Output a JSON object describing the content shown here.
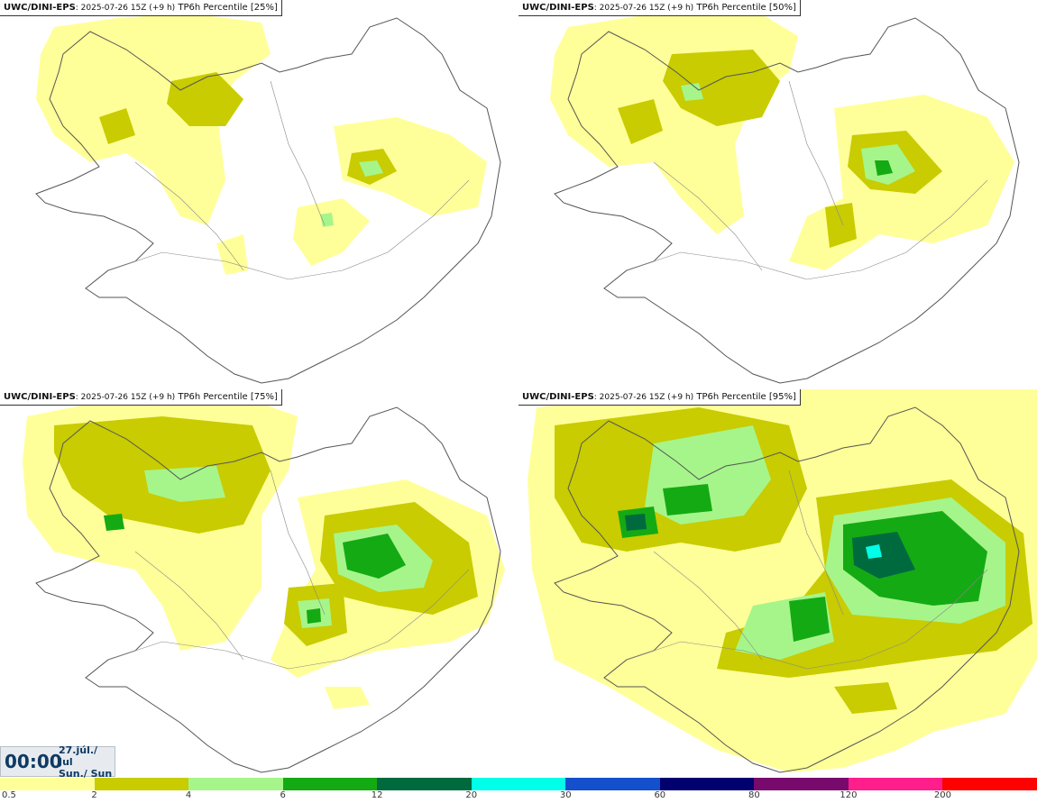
{
  "panels": [
    {
      "model": "UWC/DINI-EPS",
      "run": ": 2025-07-26 15Z (+9 h)",
      "field": "TP6h Percentile [25%]",
      "percentile": 25
    },
    {
      "model": "UWC/DINI-EPS",
      "run": ": 2025-07-26 15Z (+9 h)",
      "field": "TP6h Percentile [50%]",
      "percentile": 50
    },
    {
      "model": "UWC/DINI-EPS",
      "run": ": 2025-07-26 15Z (+9 h)",
      "field": "TP6h Percentile [75%]",
      "percentile": 75
    },
    {
      "model": "UWC/DINI-EPS",
      "run": ": 2025-07-26 15Z (+9 h)",
      "field": "TP6h Percentile [95%]",
      "percentile": 95
    }
  ],
  "valid_time": {
    "time": "00:00",
    "date": "27.júl./ Jul",
    "day": "Sun./ Sun"
  },
  "legend": {
    "ticks": [
      "0.5",
      "2",
      "4",
      "6",
      "12",
      "20",
      "30",
      "60",
      "80",
      "120",
      "200"
    ],
    "colors": [
      "#ffff99",
      "#c8cc00",
      "#a6f58a",
      "#14aa14",
      "#006a3f",
      "#00ffe8",
      "#1450cc",
      "#00006e",
      "#780a6e",
      "#ff1e8c",
      "#ff0000"
    ]
  },
  "map_colors": {
    "coast": "#555555",
    "light": "#ffff99",
    "mid": "#c8cc00",
    "pale_green": "#a6f58a",
    "green": "#14aa14",
    "dark_green": "#006a3f",
    "cyan": "#00ffe8"
  }
}
